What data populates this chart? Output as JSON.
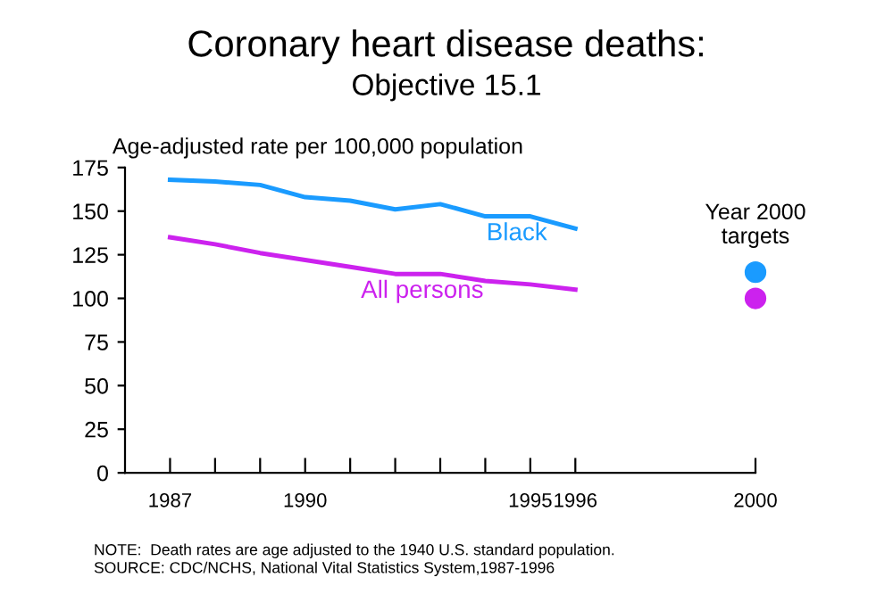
{
  "chart_data": {
    "type": "line",
    "title": "Coronary heart disease deaths:",
    "subtitle": "Objective 15.1",
    "ylabel": "Age-adjusted rate per 100,000 population",
    "series": [
      {
        "name": "Black",
        "color": "#1a9bff",
        "x": [
          1987,
          1988,
          1989,
          1990,
          1991,
          1992,
          1993,
          1994,
          1995,
          1996
        ],
        "values": [
          168,
          167,
          165,
          158,
          156,
          151,
          154,
          147,
          147,
          140
        ]
      },
      {
        "name": "All persons",
        "color": "#cc22ee",
        "x": [
          1987,
          1988,
          1989,
          1990,
          1991,
          1992,
          1993,
          1994,
          1995,
          1996
        ],
        "values": [
          135,
          131,
          126,
          122,
          118,
          114,
          114,
          110,
          108,
          105
        ]
      },
      {
        "type": "scatter",
        "marker": "circle",
        "color": "#1a9bff",
        "x": [
          2000
        ],
        "values": [
          115
        ]
      },
      {
        "type": "scatter",
        "marker": "circle",
        "color": "#cc22ee",
        "x": [
          2000
        ],
        "values": [
          100
        ]
      }
    ],
    "xlim": [
      1986,
      2000
    ],
    "xticks": [
      1987,
      {
        "value": 1988,
        "label": null
      },
      {
        "value": 1989,
        "label": null
      },
      1990,
      {
        "value": 1991,
        "label": null
      },
      {
        "value": 1992,
        "label": null
      },
      {
        "value": 1993,
        "label": null
      },
      {
        "value": 1994,
        "label": null
      },
      1995,
      1996,
      2000
    ],
    "ylim": [
      0,
      175
    ],
    "yticks": [
      0,
      25,
      50,
      75,
      100,
      125,
      150,
      175
    ],
    "grid": false,
    "legend": false,
    "marker": "none",
    "line_style": "solid",
    "annotations": [
      "Year 2000\ntargets",
      "NOTE:  Death rates are age adjusted to the 1940 U.S. standard population.\nSOURCE: CDC/NCHS, National Vital Statistics System,1987-1996"
    ]
  }
}
